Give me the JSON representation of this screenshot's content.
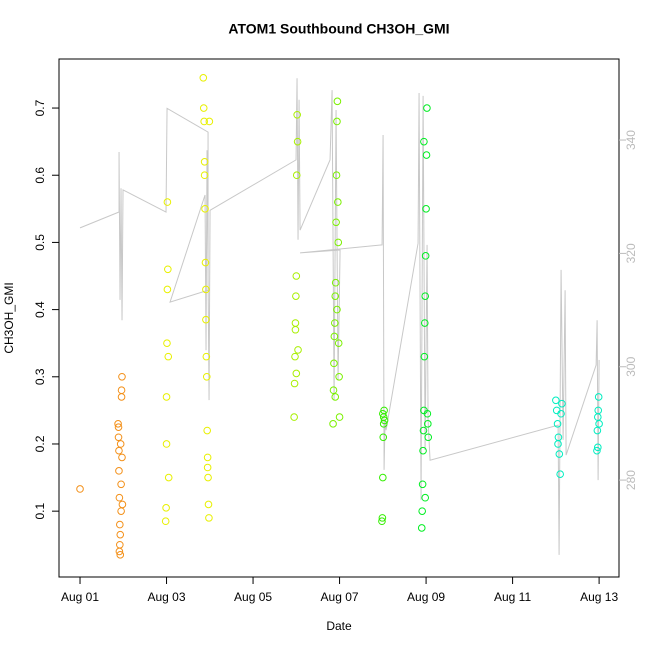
{
  "chart_data": {
    "type": "scatter",
    "title": "ATOM1 Southbound CH3OH_GMI",
    "xlabel": "Date",
    "ylabel": "CH3OH_GMI",
    "xlim": [
      -0.486,
      12.46
    ],
    "xticks": [
      {
        "value": 0,
        "label": "Aug 01"
      },
      {
        "value": 2,
        "label": "Aug 03"
      },
      {
        "value": 4,
        "label": "Aug 05"
      },
      {
        "value": 6,
        "label": "Aug 07"
      },
      {
        "value": 8,
        "label": "Aug 09"
      },
      {
        "value": 10,
        "label": "Aug 11"
      },
      {
        "value": 12,
        "label": "Aug 13"
      }
    ],
    "ylim": [
      0.002,
      0.773
    ],
    "yticks": [
      0.1,
      0.2,
      0.3,
      0.4,
      0.5,
      0.6,
      0.7
    ],
    "y2lim": [
      262.9,
      354.3
    ],
    "y2ticks": [
      280,
      300,
      320,
      340
    ],
    "y2color": "#bbbbbb",
    "series": [
      {
        "color": "#f39019",
        "x": [
          0,
          0.88,
          0.89,
          0.9,
          0.9,
          0.91,
          0.92,
          0.92,
          0.93,
          0.94,
          0.95,
          0.95,
          0.96,
          0.97,
          0.97,
          0.98,
          0.89,
          0.93,
          0.96,
          0.91
        ],
        "values": [
          0.133,
          0.23,
          0.21,
          0.19,
          0.16,
          0.12,
          0.08,
          0.05,
          0.035,
          0.2,
          0.14,
          0.1,
          0.28,
          0.3,
          0.18,
          0.11,
          0.225,
          0.065,
          0.27,
          0.04
        ]
      },
      {
        "color": "#e8f000",
        "x": [
          1.98,
          1.99,
          2.0,
          2.0,
          2.01,
          2.02,
          2.02,
          2.03,
          2.04,
          2.05,
          2.85,
          2.86,
          2.87,
          2.88,
          2.89,
          2.9,
          2.91,
          2.92,
          2.93,
          2.94,
          2.95,
          2.96,
          2.97,
          2.98,
          2.99,
          2.88,
          2.91,
          2.95
        ],
        "values": [
          0.085,
          0.105,
          0.2,
          0.27,
          0.35,
          0.43,
          0.56,
          0.46,
          0.33,
          0.15,
          0.745,
          0.7,
          0.68,
          0.62,
          0.55,
          0.47,
          0.43,
          0.33,
          0.3,
          0.22,
          0.18,
          0.15,
          0.11,
          0.09,
          0.68,
          0.6,
          0.385,
          0.165
        ]
      },
      {
        "color": "#a8ef00",
        "x": [
          4.95,
          4.96,
          4.97,
          4.98,
          4.99,
          5.0,
          5.01,
          5.02,
          5.03,
          5.04,
          5.0,
          4.98
        ],
        "values": [
          0.24,
          0.29,
          0.33,
          0.37,
          0.42,
          0.45,
          0.6,
          0.69,
          0.65,
          0.34,
          0.305,
          0.38
        ]
      },
      {
        "color": "#7bf000",
        "x": [
          5.85,
          5.86,
          5.87,
          5.88,
          5.89,
          5.9,
          5.91,
          5.92,
          5.93,
          5.94,
          5.95,
          5.96,
          5.97,
          5.98,
          5.99,
          6.0,
          5.9,
          5.94
        ],
        "values": [
          0.23,
          0.28,
          0.32,
          0.36,
          0.38,
          0.42,
          0.44,
          0.53,
          0.6,
          0.68,
          0.71,
          0.56,
          0.5,
          0.35,
          0.3,
          0.24,
          0.27,
          0.4
        ]
      },
      {
        "color": "#33ee00",
        "x": [
          6.98,
          6.99,
          7.0,
          7.01,
          7.02,
          7.03,
          7.04,
          7.0,
          7.02
        ],
        "values": [
          0.085,
          0.09,
          0.15,
          0.21,
          0.24,
          0.25,
          0.235,
          0.245,
          0.23
        ]
      },
      {
        "color": "#00ee22",
        "x": [
          7.9,
          7.91,
          7.92,
          7.93,
          7.94,
          7.95,
          7.96,
          7.97,
          7.98,
          7.99,
          8.0,
          8.01,
          8.02,
          8.03,
          8.04,
          8.05,
          7.95,
          7.98
        ],
        "values": [
          0.075,
          0.1,
          0.14,
          0.19,
          0.22,
          0.25,
          0.33,
          0.38,
          0.42,
          0.48,
          0.55,
          0.63,
          0.7,
          0.245,
          0.23,
          0.21,
          0.65,
          0.12
        ]
      },
      {
        "color": "#00eec0",
        "x": [
          11.0,
          11.02,
          11.04,
          11.06,
          11.08,
          11.1,
          11.12,
          11.14,
          11.05,
          11.95,
          11.96,
          11.97,
          11.98,
          11.99,
          12.0,
          11.97
        ],
        "values": [
          0.265,
          0.25,
          0.23,
          0.21,
          0.185,
          0.155,
          0.245,
          0.26,
          0.2,
          0.19,
          0.22,
          0.24,
          0.25,
          0.27,
          0.23,
          0.195
        ]
      },
      {
        "type": "line",
        "axis": "y2",
        "color": "#c8c8c8",
        "x": [
          0,
          0.902,
          0.902,
          0.925,
          0.948,
          0.971,
          0.994,
          1.988,
          2.012,
          2.96,
          2.96,
          2.081,
          2.89,
          2.913,
          2.936,
          2.983,
          3.006,
          4.994,
          5.017,
          5.04,
          5.064,
          5.087,
          5.78,
          5.827,
          5.873,
          5.919,
          5.965,
          6.012,
          5.087,
          6.983,
          7.006,
          7.029,
          7.052,
          7.075,
          7.815,
          7.838,
          7.884,
          7.931,
          7.977,
          8.023,
          8.046,
          8.092,
          11.052,
          11.075,
          11.121,
          11.168,
          11.214,
          11.237,
          11.931,
          11.954,
          11.977,
          12
        ],
        "values": [
          324.5,
          327.3,
          337.9,
          311.8,
          331.5,
          308.2,
          331.2,
          327.3,
          345.6,
          341.4,
          313.5,
          311.4,
          330.3,
          302.9,
          338.2,
          294.1,
          327.6,
          336.5,
          350.9,
          322.4,
          347.1,
          324.1,
          336.5,
          348.8,
          294.1,
          345.3,
          297.6,
          320.6,
          320.1,
          321.5,
          340.9,
          281.8,
          290.6,
          288.8,
          321.8,
          348.3,
          276.5,
          347.8,
          285.3,
          321.5,
          290.6,
          283.5,
          289.7,
          266.8,
          317.1,
          287.1,
          313.5,
          284.4,
          300.3,
          308.2,
          280.0,
          301.2
        ]
      }
    ]
  }
}
